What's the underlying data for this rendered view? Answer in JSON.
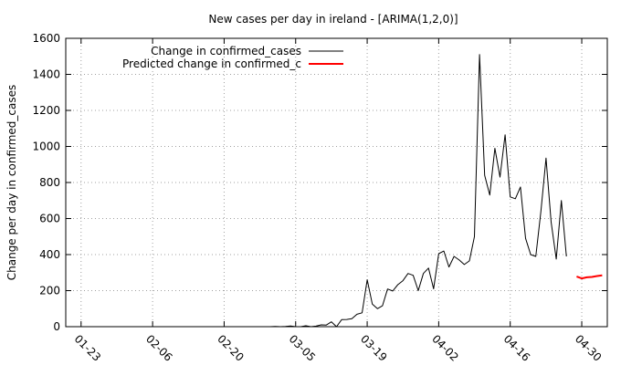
{
  "chart_data": {
    "type": "line",
    "title": "New cases per day in ireland -  [ARIMA(1,2,0)]",
    "xlabel": "",
    "ylabel": "Change per day in confirmed_cases",
    "x_ticks": [
      "01-23",
      "02-06",
      "02-20",
      "03-05",
      "03-19",
      "04-02",
      "04-16",
      "04-30"
    ],
    "xlim": [
      "2020-01-20",
      "2020-05-05"
    ],
    "ylim": [
      0,
      1600
    ],
    "y_ticks": [
      0,
      200,
      400,
      600,
      800,
      1000,
      1200,
      1400,
      1600
    ],
    "grid": true,
    "legend_position": "top-right",
    "series": [
      {
        "name": "Change in confirmed_cases",
        "color": "#000000",
        "x": [
          "2020-01-22",
          "2020-02-01",
          "2020-02-15",
          "2020-02-29",
          "2020-03-01",
          "2020-03-02",
          "2020-03-03",
          "2020-03-04",
          "2020-03-05",
          "2020-03-06",
          "2020-03-07",
          "2020-03-08",
          "2020-03-09",
          "2020-03-10",
          "2020-03-11",
          "2020-03-12",
          "2020-03-13",
          "2020-03-14",
          "2020-03-15",
          "2020-03-16",
          "2020-03-17",
          "2020-03-18",
          "2020-03-19",
          "2020-03-20",
          "2020-03-21",
          "2020-03-22",
          "2020-03-23",
          "2020-03-24",
          "2020-03-25",
          "2020-03-26",
          "2020-03-27",
          "2020-03-28",
          "2020-03-29",
          "2020-03-30",
          "2020-03-31",
          "2020-04-01",
          "2020-04-02",
          "2020-04-03",
          "2020-04-04",
          "2020-04-05",
          "2020-04-06",
          "2020-04-07",
          "2020-04-08",
          "2020-04-09",
          "2020-04-10",
          "2020-04-11",
          "2020-04-12",
          "2020-04-13",
          "2020-04-14",
          "2020-04-15",
          "2020-04-16",
          "2020-04-17",
          "2020-04-18",
          "2020-04-19",
          "2020-04-20",
          "2020-04-21",
          "2020-04-22",
          "2020-04-23",
          "2020-04-24",
          "2020-04-25",
          "2020-04-26",
          "2020-04-27"
        ],
        "y": [
          0,
          0,
          0,
          0,
          1,
          0,
          1,
          4,
          0,
          0,
          5,
          0,
          3,
          10,
          9,
          27,
          0,
          39,
          40,
          44,
          69,
          77,
          260,
          125,
          100,
          116,
          209,
          198,
          233,
          255,
          295,
          285,
          200,
          295,
          325,
          210,
          405,
          420,
          331,
          390,
          370,
          345,
          365,
          500,
          1510,
          840,
          730,
          990,
          830,
          1065,
          720,
          710,
          775,
          490,
          400,
          390,
          640,
          935,
          580,
          375,
          700,
          390
        ]
      },
      {
        "name": "Predicted change in confirmed_c",
        "color": "#ff0000",
        "x": [
          "2020-04-29",
          "2020-04-30",
          "2020-05-01",
          "2020-05-02",
          "2020-05-03",
          "2020-05-04"
        ],
        "y": [
          278,
          268,
          274,
          276,
          281,
          285
        ]
      }
    ]
  }
}
